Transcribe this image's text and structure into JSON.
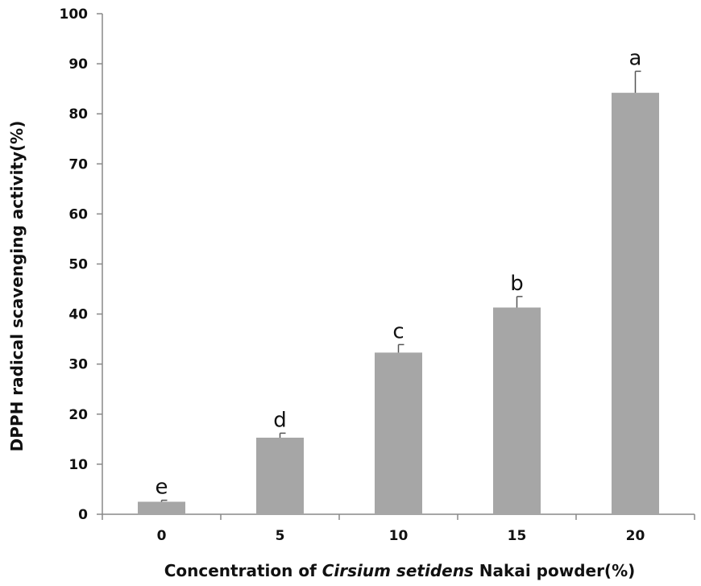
{
  "chart_data": {
    "type": "bar",
    "categories": [
      "0",
      "5",
      "10",
      "15",
      "20"
    ],
    "values": [
      2.5,
      15.3,
      32.3,
      41.3,
      84.2
    ],
    "error_upper": [
      0.3,
      0.9,
      1.6,
      2.2,
      4.3
    ],
    "significance_labels": [
      "e",
      "d",
      "c",
      "b",
      "a"
    ],
    "title": "",
    "xlabel_parts": [
      {
        "text": "Concentration of ",
        "italic": false
      },
      {
        "text": "Cirsium setidens",
        "italic": true
      },
      {
        "text": " Nakai powder(%)",
        "italic": false
      }
    ],
    "ylabel": "DPPH radical scavenging activity(%)",
    "ylim": [
      0,
      100
    ],
    "yticks": [
      0,
      10,
      20,
      30,
      40,
      50,
      60,
      70,
      80,
      90,
      100
    ],
    "grid": false,
    "legend": "none",
    "bar_color": "#a6a6a6",
    "error_color": "#555555",
    "axis_color": "#888888"
  }
}
